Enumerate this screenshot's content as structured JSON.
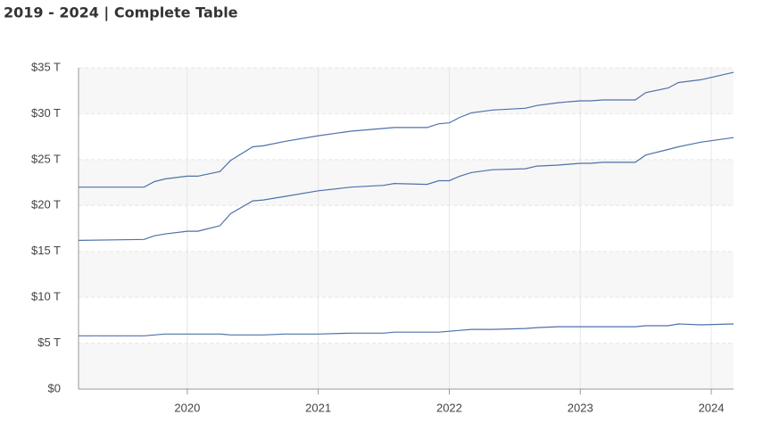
{
  "chart_data": {
    "type": "line",
    "title": "2019 - 2024 | Complete Table",
    "x": [
      2019.17,
      2019.67,
      2019.75,
      2019.83,
      2020.0,
      2020.08,
      2020.25,
      2020.33,
      2020.5,
      2020.58,
      2020.75,
      2021.0,
      2021.25,
      2021.5,
      2021.58,
      2021.83,
      2021.92,
      2022.0,
      2022.08,
      2022.17,
      2022.33,
      2022.58,
      2022.67,
      2022.83,
      2023.0,
      2023.08,
      2023.17,
      2023.42,
      2023.5,
      2023.67,
      2023.75,
      2023.92,
      2024.17
    ],
    "series": [
      {
        "color": "#4d72a8",
        "values": [
          22.0,
          22.0,
          22.6,
          22.9,
          23.2,
          23.2,
          23.7,
          24.9,
          26.4,
          26.5,
          27.0,
          27.6,
          28.1,
          28.4,
          28.5,
          28.5,
          28.9,
          29.0,
          29.6,
          30.1,
          30.4,
          30.6,
          30.9,
          31.2,
          31.4,
          31.4,
          31.5,
          31.5,
          32.3,
          32.8,
          33.4,
          33.7,
          34.5
        ]
      },
      {
        "color": "#4d72a8",
        "values": [
          16.2,
          16.3,
          16.7,
          16.9,
          17.2,
          17.2,
          17.8,
          19.1,
          20.5,
          20.6,
          21.0,
          21.6,
          22.0,
          22.2,
          22.4,
          22.3,
          22.7,
          22.7,
          23.2,
          23.6,
          23.9,
          24.0,
          24.3,
          24.4,
          24.6,
          24.6,
          24.7,
          24.7,
          25.5,
          26.1,
          26.4,
          26.9,
          27.4
        ]
      },
      {
        "color": "#4d72a8",
        "values": [
          5.8,
          5.8,
          5.9,
          6.0,
          6.0,
          6.0,
          6.0,
          5.9,
          5.9,
          5.9,
          6.0,
          6.0,
          6.1,
          6.1,
          6.2,
          6.2,
          6.2,
          6.3,
          6.4,
          6.5,
          6.5,
          6.6,
          6.7,
          6.8,
          6.8,
          6.8,
          6.8,
          6.8,
          6.9,
          6.9,
          7.1,
          7.0,
          7.1
        ]
      }
    ],
    "xlim": [
      2019.17,
      2024.17
    ],
    "xticks": [
      2020,
      2021,
      2022,
      2023,
      2024
    ],
    "ylim": [
      0,
      35
    ],
    "yticks": [
      {
        "value": 0,
        "label": "$0"
      },
      {
        "value": 5,
        "label": "$5 T"
      },
      {
        "value": 10,
        "label": "$10 T"
      },
      {
        "value": 15,
        "label": "$15 T"
      },
      {
        "value": 20,
        "label": "$20 T"
      },
      {
        "value": 25,
        "label": "$25 T"
      },
      {
        "value": 30,
        "label": "$30 T"
      },
      {
        "value": 35,
        "label": "$35 T"
      }
    ],
    "grid": true
  }
}
